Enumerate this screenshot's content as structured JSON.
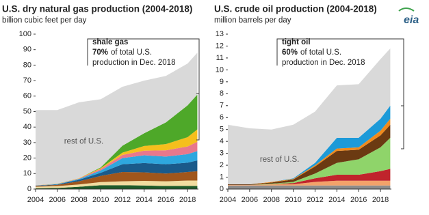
{
  "logo": "eia",
  "chart_data": [
    {
      "type": "area",
      "stacked": true,
      "title": "U.S. dry natural gas production (2004-2018)",
      "subtitle": "billion cubic feet per day",
      "x": [
        2004,
        2006,
        2008,
        2010,
        2012,
        2014,
        2016,
        2018,
        2018.9
      ],
      "xlim": [
        2004,
        2019
      ],
      "xticks": [
        2004,
        2006,
        2008,
        2010,
        2012,
        2014,
        2016,
        2018
      ],
      "ylim": [
        0,
        100
      ],
      "yticks": [
        0,
        10,
        20,
        30,
        40,
        50,
        60,
        70,
        80,
        90,
        100
      ],
      "annotation": {
        "title": "shale gas",
        "share": "70%",
        "text": "of total U.S.",
        "text2": "production in Dec. 2018"
      },
      "series": [
        {
          "color": "#1e5b2a",
          "values": [
            0.5,
            0.7,
            1.5,
            2.5,
            2.5,
            2.3,
            2,
            2,
            2
          ]
        },
        {
          "color": "#f1dca0",
          "values": [
            1,
            1.2,
            1.5,
            2,
            2.5,
            3,
            3,
            3.5,
            3.5
          ]
        },
        {
          "color": "#a0561c",
          "values": [
            0.5,
            0.8,
            2,
            4,
            6,
            5.5,
            5,
            5.5,
            6
          ]
        },
        {
          "color": "#1a5a8a",
          "values": [
            0.2,
            0.3,
            1,
            2,
            5,
            6,
            6,
            6,
            7
          ]
        },
        {
          "color": "#2ea7de",
          "values": [
            0.1,
            0.2,
            0.5,
            1.5,
            4,
            5,
            5,
            5.5,
            6
          ]
        },
        {
          "color": "#e8788c",
          "values": [
            0.1,
            0.1,
            0.3,
            1,
            2,
            3,
            4,
            5,
            6
          ]
        },
        {
          "color": "#f5bf1d",
          "values": [
            0.1,
            0.1,
            0.2,
            0.5,
            1.5,
            3,
            4,
            6,
            8
          ]
        },
        {
          "color": "#4ea829",
          "values": [
            0,
            0.1,
            0,
            0.5,
            4.5,
            8.2,
            14,
            20.5,
            22.5
          ]
        },
        {
          "name": "rest of U.S.",
          "color": "#d9d9d9",
          "values": [
            48.5,
            47.5,
            49,
            44,
            38,
            34,
            30,
            27,
            27
          ]
        }
      ]
    },
    {
      "type": "area",
      "stacked": true,
      "title": "U.S. crude oil production (2004-2018)",
      "subtitle": "million barrels per day",
      "x": [
        2004,
        2006,
        2008,
        2010,
        2012,
        2014,
        2016,
        2018,
        2018.9
      ],
      "xlim": [
        2004,
        2019
      ],
      "xticks": [
        2004,
        2006,
        2008,
        2010,
        2012,
        2014,
        2016,
        2018
      ],
      "ylim": [
        0,
        13
      ],
      "yticks": [
        0,
        1,
        2,
        3,
        4,
        5,
        6,
        7,
        8,
        9,
        10,
        11,
        12,
        13
      ],
      "annotation": {
        "title": "tight oil",
        "share": "60%",
        "text": "of total U.S.",
        "text2": "production in Dec. 2018"
      },
      "series": [
        {
          "color": "#8c8c8c",
          "values": [
            0.3,
            0.3,
            0.3,
            0.3,
            0.3,
            0.3,
            0.3,
            0.3,
            0.3
          ]
        },
        {
          "color": "#f3a26a",
          "values": [
            0.05,
            0.05,
            0.1,
            0.1,
            0.3,
            0.4,
            0.4,
            0.4,
            0.4
          ]
        },
        {
          "color": "#c0242c",
          "values": [
            0,
            0,
            0,
            0.1,
            0.3,
            0.5,
            0.5,
            0.8,
            1.0
          ]
        },
        {
          "color": "#8fd46a",
          "values": [
            0,
            0,
            0.05,
            0.1,
            0.4,
            1.0,
            1.3,
            2.0,
            2.6
          ]
        },
        {
          "color": "#6b3a12",
          "values": [
            0.05,
            0.05,
            0.1,
            0.2,
            0.6,
            1.0,
            0.8,
            1.0,
            1.1
          ]
        },
        {
          "color": "#f08a1c",
          "values": [
            0,
            0,
            0.05,
            0.05,
            0.1,
            0.2,
            0.2,
            0.4,
            0.5
          ]
        },
        {
          "color": "#1d9ad8",
          "values": [
            0,
            0,
            0,
            0.05,
            0.2,
            0.9,
            0.8,
            1.0,
            1.1
          ]
        },
        {
          "name": "rest of U.S.",
          "color": "#d9d9d9",
          "values": [
            5.0,
            4.7,
            4.4,
            4.5,
            4.3,
            4.4,
            4.5,
            5.0,
            4.8
          ]
        }
      ]
    }
  ]
}
